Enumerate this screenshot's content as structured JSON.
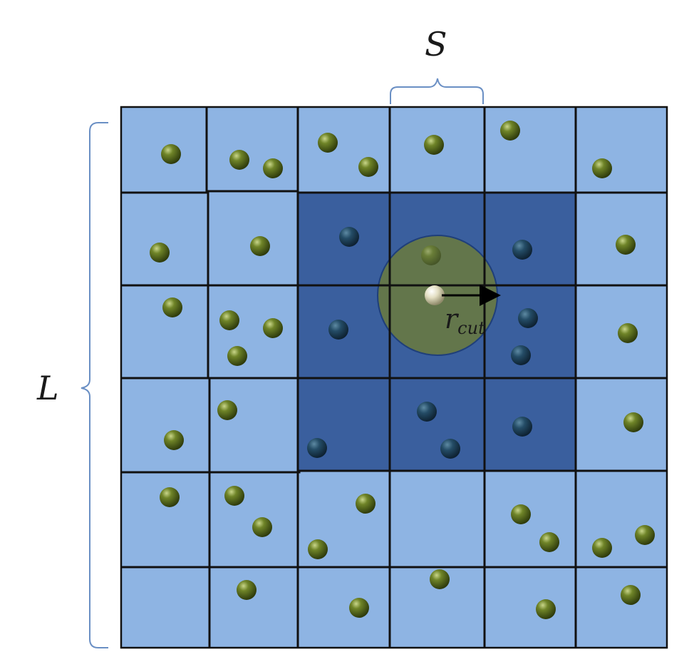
{
  "labels": {
    "cell_size": "S",
    "box_length": "L",
    "cutoff_symbol": "r",
    "cutoff_subscript": "cut"
  },
  "colors": {
    "cell_fill": "#8eb4e3",
    "neighbor_fill": "#3a5f9e",
    "cell_border": "#1a1a1a",
    "cutoff_circle_fill": "#6b7a3c",
    "particle": "#5b6e1f",
    "particle_dark": "#1f4a66",
    "central_particle": "#e8e4cf",
    "brace": "#6a8fc4"
  },
  "grid": {
    "rows": 6,
    "cols": 6
  },
  "neighbor_cells": {
    "row_start": 1,
    "row_end": 3,
    "col_start": 2,
    "col_end": 4
  },
  "central_particle": {
    "row": 2,
    "col": 3
  }
}
